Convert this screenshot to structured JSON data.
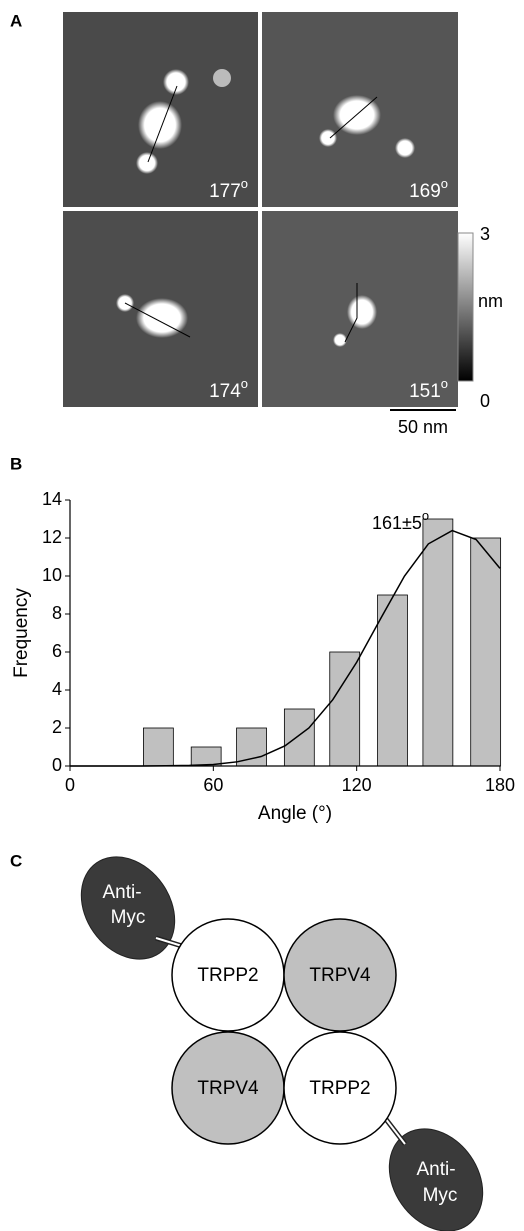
{
  "panel_a": {
    "label": "A",
    "images": [
      {
        "angle": "177",
        "degree_mark": "o"
      },
      {
        "angle": "169",
        "degree_mark": "o"
      },
      {
        "angle": "174",
        "degree_mark": "o"
      },
      {
        "angle": "151",
        "degree_mark": "o"
      }
    ],
    "colorbar": {
      "max": "3",
      "unit": "nm",
      "min": "0"
    },
    "scale_bar": "50 nm"
  },
  "panel_b": {
    "label": "B"
  },
  "chart_data": {
    "type": "bar",
    "x": [
      37,
      57,
      76,
      96,
      115,
      135,
      154,
      174
    ],
    "values": [
      2,
      1,
      2,
      3,
      6,
      9,
      13,
      12
    ],
    "color": "#c0c0c0",
    "fit": {
      "x": [
        0,
        10,
        20,
        30,
        40,
        50,
        60,
        70,
        80,
        90,
        100,
        110,
        120,
        130,
        140,
        150,
        160,
        170,
        180
      ],
      "values": [
        0,
        0,
        0,
        0,
        0.01,
        0.03,
        0.08,
        0.22,
        0.5,
        1.06,
        2.0,
        3.49,
        5.46,
        7.75,
        9.99,
        11.69,
        12.39,
        11.92,
        10.4
      ],
      "color": "#000000"
    },
    "annotation": {
      "text": "161±5",
      "sup": "o"
    },
    "xlabel": "Angle (°)",
    "ylabel": "Frequency",
    "xlim": [
      0,
      180
    ],
    "ylim": [
      0,
      14
    ],
    "xticks": [
      0,
      60,
      120,
      180
    ],
    "yticks": [
      0,
      2,
      4,
      6,
      8,
      10,
      12,
      14
    ]
  },
  "panel_c": {
    "label": "C",
    "nodes": [
      {
        "label": "TRPP2"
      },
      {
        "label": "TRPV4"
      },
      {
        "label": "TRPV4"
      },
      {
        "label": "TRPP2"
      }
    ],
    "antibodies": [
      {
        "line1": "Anti-",
        "line2": "Myc"
      },
      {
        "line1": "Anti-",
        "line2": "Myc"
      }
    ]
  }
}
